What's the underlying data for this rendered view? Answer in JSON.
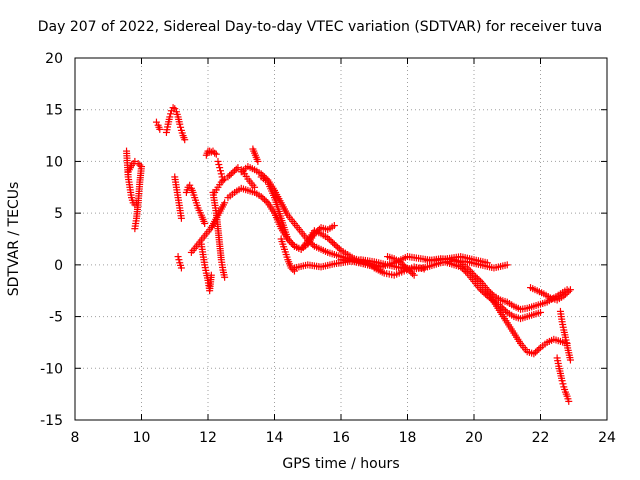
{
  "chart_data": {
    "type": "scatter",
    "title": "Day 207 of 2022, Sidereal Day-to-day VTEC variation (SDTVAR) for receiver tuva",
    "xlabel": "GPS time / hours",
    "ylabel": "SDTVAR / TECUs",
    "xlim": [
      8,
      24
    ],
    "ylim": [
      -15,
      20
    ],
    "xticks": [
      8,
      10,
      12,
      14,
      16,
      18,
      20,
      22,
      24
    ],
    "yticks": [
      20,
      15,
      10,
      5,
      0,
      -5,
      -10,
      -15
    ],
    "xtick_labels": [
      "8",
      "10",
      "12",
      "14",
      "16",
      "18",
      "20",
      "22",
      "24"
    ],
    "ytick_labels": [
      "20",
      "15",
      "10",
      "5",
      "0",
      "-5",
      "-10",
      "-15"
    ],
    "grid": true,
    "marker": "+",
    "marker_color": "#ff0000",
    "series": [
      {
        "name": "tuva",
        "tracks": [
          {
            "x": [
              9.55,
              9.6,
              9.65,
              9.7,
              9.75,
              9.8,
              9.85
            ],
            "y": [
              11,
              8.5,
              7.5,
              6.5,
              6,
              5.8,
              6
            ]
          },
          {
            "x": [
              9.6,
              9.7,
              9.8,
              9.9,
              10.0,
              9.95,
              9.9,
              9.85,
              9.8
            ],
            "y": [
              9,
              9.6,
              10,
              9.8,
              9.5,
              8,
              6,
              4.5,
              3.5
            ]
          },
          {
            "x": [
              10.45,
              10.5,
              10.55
            ],
            "y": [
              13.8,
              13.5,
              13.1
            ]
          },
          {
            "x": [
              10.75,
              10.8,
              10.85,
              10.9,
              10.95,
              11.0,
              11.05,
              11.1,
              11.15,
              11.2,
              11.25,
              11.3
            ],
            "y": [
              12.8,
              13.6,
              14.3,
              14.9,
              15.2,
              15.1,
              14.8,
              14.3,
              13.6,
              13,
              12.5,
              12.1
            ]
          },
          {
            "x": [
              11.0,
              11.05,
              11.1,
              11.15,
              11.2
            ],
            "y": [
              8.5,
              7.5,
              6.5,
              5.5,
              4.5
            ]
          },
          {
            "x": [
              11.1,
              11.15,
              11.2
            ],
            "y": [
              0.8,
              0.2,
              -0.3
            ]
          },
          {
            "x": [
              11.35,
              11.4,
              11.45,
              11.5,
              11.55,
              11.6,
              11.65,
              11.7,
              11.8,
              11.9
            ],
            "y": [
              7,
              7.5,
              7.7,
              7.4,
              7,
              6.5,
              6,
              5.5,
              4.8,
              4
            ]
          },
          {
            "x": [
              11.5,
              11.6,
              11.7,
              11.8,
              11.9,
              12.0,
              12.1,
              12.2,
              12.3,
              12.4,
              12.5
            ],
            "y": [
              1.2,
              1.6,
              2,
              2.4,
              2.8,
              3.2,
              3.6,
              4.2,
              4.8,
              5.4,
              6
            ]
          },
          {
            "x": [
              11.8,
              11.85,
              11.9,
              11.95,
              12.0,
              12.05,
              12.1
            ],
            "y": [
              2,
              1,
              0,
              -0.8,
              -1.5,
              -2.5,
              -1
            ]
          },
          {
            "x": [
              11.95,
              12.0,
              12.05,
              12.1,
              12.15,
              12.2,
              12.25
            ],
            "y": [
              10.6,
              11,
              11,
              10.9,
              11,
              10.8,
              10.7
            ]
          },
          {
            "x": [
              12.15,
              12.2,
              12.25,
              12.3,
              12.35,
              12.4,
              12.45,
              12.5
            ],
            "y": [
              7,
              6,
              5,
              3.5,
              2,
              0.5,
              -0.5,
              -1.2
            ]
          },
          {
            "x": [
              12.2,
              12.3,
              12.4,
              12.5,
              12.6,
              12.7,
              12.8,
              12.9,
              13.0,
              13.1,
              13.2,
              13.3,
              13.4
            ],
            "y": [
              7,
              7.5,
              8,
              8.3,
              8.5,
              8.8,
              9.1,
              9.4,
              9.2,
              8.8,
              8.3,
              7.9,
              7.5
            ]
          },
          {
            "x": [
              12.3,
              12.35,
              12.4,
              12.45
            ],
            "y": [
              10,
              9.4,
              8.8,
              8.2
            ]
          },
          {
            "x": [
              13.35,
              13.4,
              13.45,
              13.5
            ],
            "y": [
              11.2,
              10.8,
              10.4,
              10
            ]
          },
          {
            "x": [
              12.6,
              12.8,
              13.0,
              13.2,
              13.4,
              13.6,
              13.8,
              14.0,
              14.2,
              14.4,
              14.6,
              14.8,
              15.0,
              15.2,
              15.4,
              15.6,
              15.8
            ],
            "y": [
              6.5,
              7,
              7.4,
              7.2,
              7,
              6.6,
              6,
              5,
              3.5,
              2.5,
              1.8,
              1.5,
              2,
              3,
              3.6,
              3.4,
              3.8
            ]
          },
          {
            "x": [
              13.0,
              13.2,
              13.4,
              13.6,
              13.8,
              14.0,
              14.2,
              14.4,
              14.6,
              14.8,
              15.0,
              15.2,
              15.4,
              15.6,
              15.8,
              16.0,
              16.2,
              16.4,
              16.6,
              16.8,
              17.0
            ],
            "y": [
              9,
              9.5,
              9.2,
              8.8,
              8.2,
              7.2,
              6,
              4.8,
              4,
              3.2,
              2.4,
              1.8,
              1.5,
              1.2,
              1,
              0.8,
              0.6,
              0.4,
              0.2,
              0,
              -0.2
            ]
          },
          {
            "x": [
              13.6,
              13.8,
              14.0,
              14.2,
              14.4,
              14.6,
              14.8,
              15.0,
              15.2,
              15.4,
              15.6,
              15.8,
              16.0,
              16.2,
              16.4,
              16.6,
              16.8,
              17.0,
              17.2
            ],
            "y": [
              8.5,
              8,
              6.5,
              4.5,
              2.5,
              1.8,
              1.5,
              2.3,
              3.3,
              3,
              2.6,
              2,
              1.4,
              1,
              0.6,
              0.4,
              0.2,
              0,
              -0.2
            ]
          },
          {
            "x": [
              14.2,
              14.3,
              14.4,
              14.5,
              14.6
            ],
            "y": [
              2.5,
              1.5,
              0.5,
              -0.3,
              -0.6
            ]
          },
          {
            "x": [
              14.6,
              15.0,
              15.4,
              15.8,
              16.2,
              16.6,
              17.0,
              17.4,
              17.8,
              18.2,
              18.6,
              19.0,
              19.4,
              19.8,
              20.2,
              20.6,
              21.0
            ],
            "y": [
              -0.3,
              0,
              -0.2,
              0.1,
              0.3,
              0.5,
              0.3,
              0,
              -0.3,
              -0.4,
              -0.2,
              0.2,
              0.4,
              0.3,
              0,
              -0.3,
              0
            ]
          },
          {
            "x": [
              16.0,
              16.4,
              16.8,
              17.2,
              17.6,
              18.0,
              18.4,
              18.8,
              19.2,
              19.6,
              20.0,
              20.4
            ],
            "y": [
              0.5,
              0.3,
              0,
              -0.2,
              0.2,
              0.8,
              0.6,
              0.4,
              0.6,
              0.8,
              0.5,
              0.2
            ]
          },
          {
            "x": [
              17.0,
              17.3,
              17.6,
              17.9,
              18.2,
              18.5
            ],
            "y": [
              -0.3,
              -0.8,
              -1,
              -0.6,
              -0.2,
              -0.4
            ]
          },
          {
            "x": [
              17.4,
              17.6,
              17.8,
              18.0,
              18.2
            ],
            "y": [
              0.8,
              0.6,
              0.2,
              -0.4,
              -1
            ]
          },
          {
            "x": [
              18.6,
              19.0,
              19.4,
              19.6,
              19.8,
              20.0,
              20.2,
              20.4,
              20.6,
              20.8,
              21.0,
              21.2,
              21.4,
              21.6,
              21.8,
              22.0,
              22.2,
              22.4,
              22.6,
              22.8
            ],
            "y": [
              0.4,
              0.6,
              0.5,
              0.2,
              -0.3,
              -1,
              -1.6,
              -2.4,
              -3,
              -3.4,
              -3.6,
              -4,
              -4.3,
              -4.2,
              -4,
              -3.8,
              -3.6,
              -3.2,
              -2.8,
              -2.4
            ]
          },
          {
            "x": [
              19.2,
              19.6,
              19.8,
              20.0,
              20.2,
              20.4,
              20.6,
              20.8,
              21.0,
              21.2,
              21.4,
              21.6,
              21.8,
              22.0
            ],
            "y": [
              0.2,
              -0.2,
              -0.8,
              -1.6,
              -2.4,
              -3,
              -3.5,
              -4,
              -4.6,
              -5,
              -5.2,
              -5,
              -4.8,
              -4.6
            ]
          },
          {
            "x": [
              20.4,
              20.6,
              20.8,
              21.0,
              21.2,
              21.4,
              21.6,
              21.8,
              22.0,
              22.2,
              22.4,
              22.6,
              22.8
            ],
            "y": [
              -2.8,
              -3.6,
              -4.6,
              -5.6,
              -6.6,
              -7.6,
              -8.4,
              -8.6,
              -8,
              -7.5,
              -7.2,
              -7.4,
              -7.6
            ]
          },
          {
            "x": [
              21.7,
              21.9,
              22.1,
              22.3,
              22.5,
              22.7,
              22.9
            ],
            "y": [
              -2.2,
              -2.5,
              -2.8,
              -3.2,
              -3.4,
              -3,
              -2.4
            ]
          },
          {
            "x": [
              22.6,
              22.65,
              22.7,
              22.75,
              22.8,
              22.85,
              22.9
            ],
            "y": [
              -4.5,
              -5.5,
              -6.3,
              -7,
              -7.8,
              -8.5,
              -9.2
            ]
          },
          {
            "x": [
              22.5,
              22.55,
              22.6,
              22.65,
              22.7,
              22.75,
              22.8,
              22.85
            ],
            "y": [
              -9,
              -9.8,
              -10.5,
              -11.2,
              -11.8,
              -12.3,
              -12.7,
              -13.2
            ]
          }
        ]
      }
    ]
  }
}
